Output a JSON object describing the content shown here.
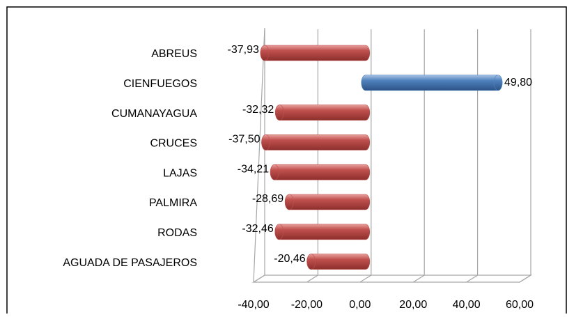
{
  "chart_data": {
    "type": "bar",
    "orientation": "horizontal",
    "categories": [
      "ABREUS",
      "CIENFUEGOS",
      "CUMANAYAGUA",
      "CRUCES",
      "LAJAS",
      "PALMIRA",
      "RODAS",
      "AGUADA DE PASAJEROS"
    ],
    "values": [
      -37.93,
      49.8,
      -32.32,
      -37.5,
      -34.21,
      -28.69,
      -32.46,
      -20.46
    ],
    "value_labels": [
      "-37,93",
      "49,80",
      "-32,32",
      "-37,50",
      "-34,21",
      "-28,69",
      "-32,46",
      "-20,46"
    ],
    "negative_color": "#c0504d",
    "positive_color": "#4f81bd",
    "xlim": [
      -40,
      60
    ],
    "xticks": [
      {
        "value": -40,
        "label": "-40,00"
      },
      {
        "value": -20,
        "label": "-20,00"
      },
      {
        "value": 0,
        "label": "0,00"
      },
      {
        "value": 20,
        "label": "20,00"
      },
      {
        "value": 40,
        "label": "40,00"
      },
      {
        "value": 60,
        "label": "60,00"
      }
    ],
    "grid": true
  }
}
